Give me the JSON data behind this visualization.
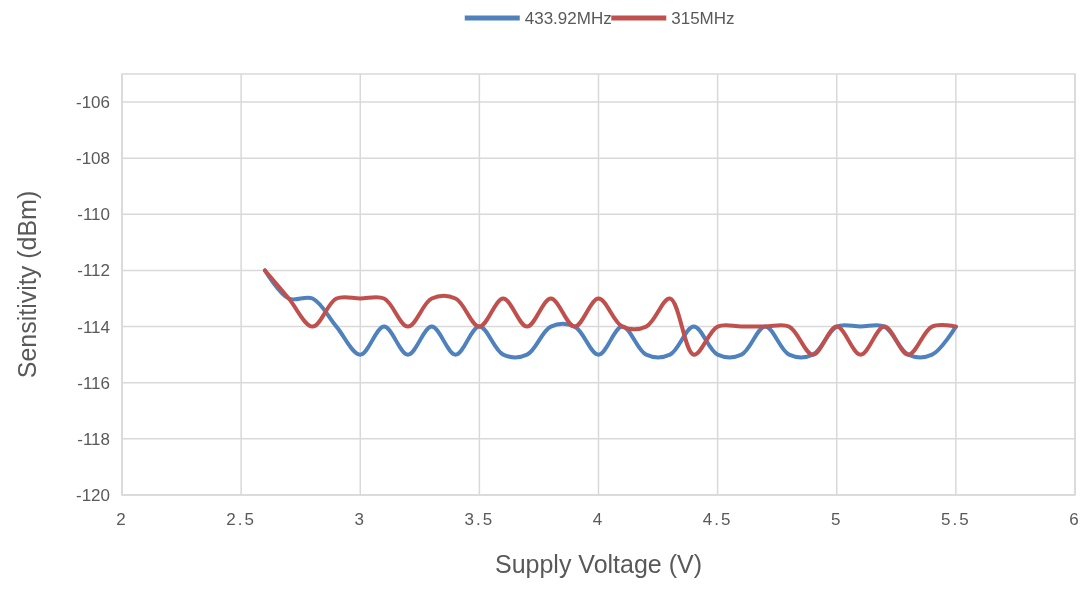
{
  "chart_data": {
    "type": "line",
    "xlabel": "Supply Voltage (V)",
    "ylabel": "Sensitivity (dBm)",
    "x": [
      2.6,
      2.7,
      2.8,
      2.9,
      3.0,
      3.1,
      3.2,
      3.3,
      3.4,
      3.5,
      3.6,
      3.7,
      3.8,
      3.9,
      4.0,
      4.1,
      4.2,
      4.3,
      4.4,
      4.5,
      4.6,
      4.7,
      4.8,
      4.9,
      5.0,
      5.1,
      5.2,
      5.3,
      5.4,
      5.5
    ],
    "series": [
      {
        "name": "433.92MHz",
        "color": "#4f81bd",
        "values": [
          -112,
          -113,
          -113,
          -114,
          -115,
          -114,
          -115,
          -114,
          -115,
          -114,
          -115,
          -115,
          -114,
          -114,
          -115,
          -114,
          -115,
          -115,
          -114,
          -115,
          -115,
          -114,
          -115,
          -115,
          -114,
          -114,
          -114,
          -115,
          -115,
          -114
        ]
      },
      {
        "name": "315MHz",
        "color": "#c0504d",
        "values": [
          -112,
          -113,
          -114,
          -113,
          -113,
          -113,
          -114,
          -113,
          -113,
          -114,
          -113,
          -114,
          -113,
          -114,
          -113,
          -114,
          -114,
          -113,
          -115,
          -114,
          -114,
          -114,
          -114,
          -115,
          -114,
          -115,
          -114,
          -115,
          -114,
          -114
        ]
      }
    ],
    "xlim": [
      2,
      6
    ],
    "xticks": [
      2,
      2.5,
      3,
      3.5,
      4,
      4.5,
      5,
      5.5,
      6
    ],
    "ylim": [
      -120,
      -105
    ],
    "yticks": [
      -120,
      -118,
      -116,
      -114,
      -112,
      -110,
      -108,
      -106
    ],
    "grid": true,
    "legend": "top",
    "marker": "none",
    "line_style": "solid"
  }
}
